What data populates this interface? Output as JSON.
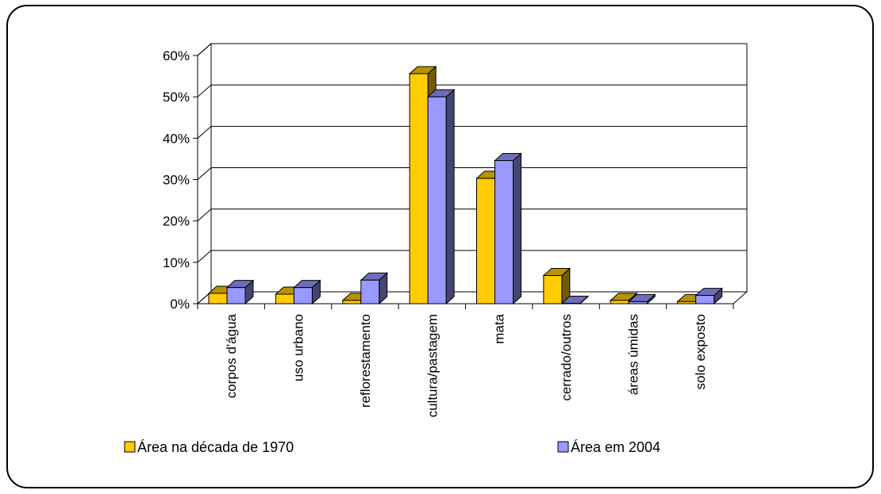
{
  "chart_data": {
    "type": "bar",
    "style": "3d-clustered-column",
    "categories": [
      "corpos d'água",
      "uso urbano",
      "reflorestamento",
      "cultura/pastagem",
      "mata",
      "cerrado/outros",
      "áreas úmidas",
      "solo exposto"
    ],
    "series": [
      {
        "name": "Área na década de 1970",
        "color": "#FFCC00",
        "values": [
          2.5,
          2.3,
          0.8,
          55.6,
          30.3,
          6.8,
          0.8,
          0.5
        ]
      },
      {
        "name": "Área em 2004",
        "color": "#9999FF",
        "values": [
          3.9,
          3.9,
          5.7,
          50.0,
          34.6,
          0.1,
          0.5,
          2.0
        ]
      }
    ],
    "ylim": [
      0,
      60
    ],
    "yticks": [
      "0%",
      "10%",
      "20%",
      "30%",
      "40%",
      "50%",
      "60%"
    ],
    "grid": true,
    "legend": "bottom"
  }
}
